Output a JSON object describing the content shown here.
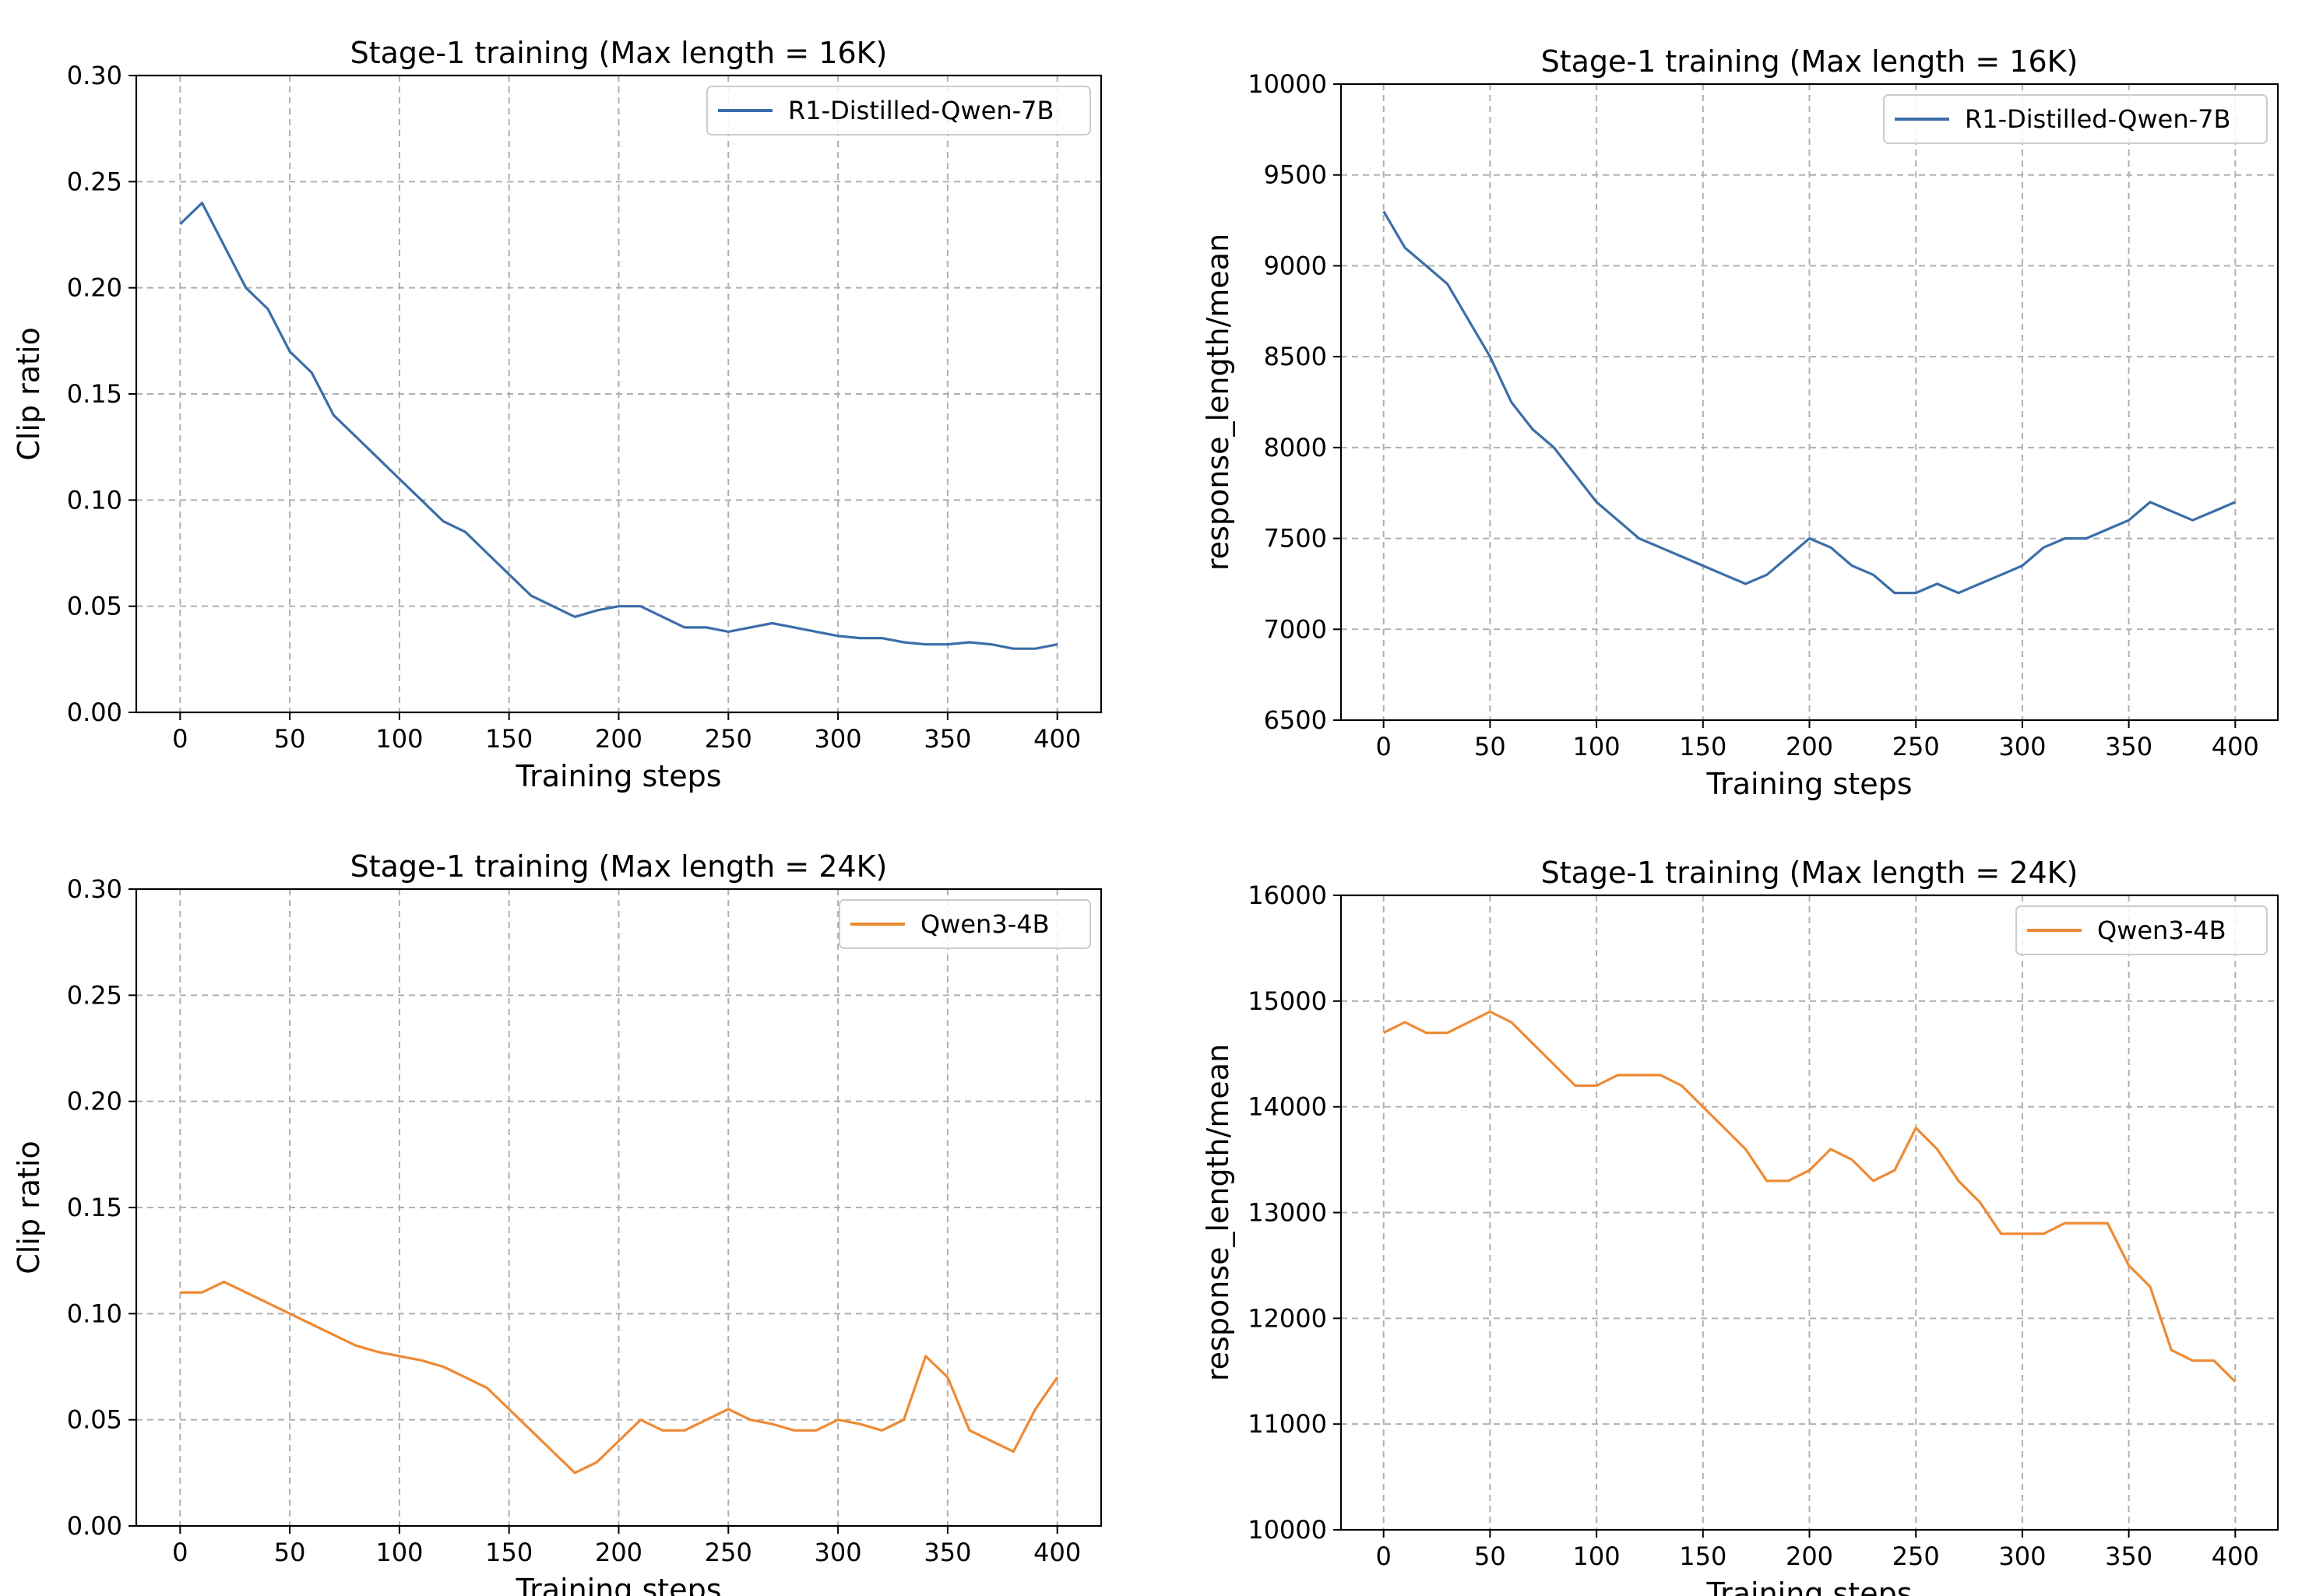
{
  "colors": {
    "blue": "#3b6ea8",
    "orange": "#ee8a33",
    "grid": "#b0b0b0"
  },
  "chart_data": [
    {
      "type": "line",
      "title": "Stage-1 training (Max length = 16K)",
      "xlabel": "Training steps",
      "ylabel": "Clip ratio",
      "xlim": [
        -20,
        420
      ],
      "ylim": [
        0,
        0.3
      ],
      "xticks": [
        0,
        50,
        100,
        150,
        200,
        250,
        300,
        350,
        400
      ],
      "yticks": [
        0.0,
        0.05,
        0.1,
        0.15,
        0.2,
        0.25,
        0.3
      ],
      "ytick_labels": [
        "0.00",
        "0.05",
        "0.10",
        "0.15",
        "0.20",
        "0.25",
        "0.30"
      ],
      "grid": true,
      "legend": "top-right",
      "series": [
        {
          "name": "R1-Distilled-Qwen-7B",
          "color": "#3b6ea8",
          "x": [
            0,
            10,
            20,
            30,
            40,
            50,
            60,
            70,
            80,
            90,
            100,
            110,
            120,
            130,
            140,
            150,
            160,
            170,
            180,
            190,
            200,
            210,
            220,
            230,
            240,
            250,
            260,
            270,
            280,
            290,
            300,
            310,
            320,
            330,
            340,
            350,
            360,
            370,
            380,
            390,
            400
          ],
          "y": [
            0.23,
            0.24,
            0.22,
            0.2,
            0.19,
            0.17,
            0.16,
            0.14,
            0.13,
            0.12,
            0.11,
            0.1,
            0.09,
            0.085,
            0.075,
            0.065,
            0.055,
            0.05,
            0.045,
            0.048,
            0.05,
            0.05,
            0.045,
            0.04,
            0.04,
            0.038,
            0.04,
            0.042,
            0.04,
            0.038,
            0.036,
            0.035,
            0.035,
            0.033,
            0.032,
            0.032,
            0.033,
            0.032,
            0.03,
            0.03,
            0.032
          ]
        }
      ]
    },
    {
      "type": "line",
      "title": "Stage-1 training (Max length = 16K)",
      "xlabel": "Training steps",
      "ylabel": "response_length/mean",
      "xlim": [
        -20,
        420
      ],
      "ylim": [
        6500,
        10000
      ],
      "xticks": [
        0,
        50,
        100,
        150,
        200,
        250,
        300,
        350,
        400
      ],
      "yticks": [
        6500,
        7000,
        7500,
        8000,
        8500,
        9000,
        9500,
        10000
      ],
      "ytick_labels": [
        "6500",
        "7000",
        "7500",
        "8000",
        "8500",
        "9000",
        "9500",
        "10000"
      ],
      "grid": true,
      "legend": "top-right",
      "series": [
        {
          "name": "R1-Distilled-Qwen-7B",
          "color": "#3b6ea8",
          "x": [
            0,
            10,
            20,
            30,
            40,
            50,
            60,
            70,
            80,
            90,
            100,
            110,
            120,
            130,
            140,
            150,
            160,
            170,
            180,
            190,
            200,
            210,
            220,
            230,
            240,
            250,
            260,
            270,
            280,
            290,
            300,
            310,
            320,
            330,
            340,
            350,
            360,
            370,
            380,
            390,
            400
          ],
          "y": [
            9300,
            9100,
            9000,
            8900,
            8700,
            8500,
            8250,
            8100,
            8000,
            7850,
            7700,
            7600,
            7500,
            7450,
            7400,
            7350,
            7300,
            7250,
            7300,
            7400,
            7500,
            7450,
            7350,
            7300,
            7200,
            7200,
            7250,
            7200,
            7250,
            7300,
            7350,
            7450,
            7500,
            7500,
            7550,
            7600,
            7700,
            7650,
            7600,
            7650,
            7700
          ]
        }
      ]
    },
    {
      "type": "line",
      "title": "Stage-1 training (Max length = 24K)",
      "xlabel": "Training steps",
      "ylabel": "Clip ratio",
      "xlim": [
        -20,
        420
      ],
      "ylim": [
        0,
        0.3
      ],
      "xticks": [
        0,
        50,
        100,
        150,
        200,
        250,
        300,
        350,
        400
      ],
      "yticks": [
        0.0,
        0.05,
        0.1,
        0.15,
        0.2,
        0.25,
        0.3
      ],
      "ytick_labels": [
        "0.00",
        "0.05",
        "0.10",
        "0.15",
        "0.20",
        "0.25",
        "0.30"
      ],
      "grid": true,
      "legend": "top-right",
      "series": [
        {
          "name": "Qwen3-4B",
          "color": "#ee8a33",
          "x": [
            0,
            10,
            20,
            30,
            40,
            50,
            60,
            70,
            80,
            90,
            100,
            110,
            120,
            130,
            140,
            150,
            160,
            170,
            180,
            190,
            200,
            210,
            220,
            230,
            240,
            250,
            260,
            270,
            280,
            290,
            300,
            310,
            320,
            330,
            340,
            350,
            360,
            370,
            380,
            390,
            400
          ],
          "y": [
            0.11,
            0.11,
            0.115,
            0.11,
            0.105,
            0.1,
            0.095,
            0.09,
            0.085,
            0.082,
            0.08,
            0.078,
            0.075,
            0.07,
            0.065,
            0.055,
            0.045,
            0.035,
            0.025,
            0.03,
            0.04,
            0.05,
            0.045,
            0.045,
            0.05,
            0.055,
            0.05,
            0.048,
            0.045,
            0.045,
            0.05,
            0.048,
            0.045,
            0.05,
            0.08,
            0.07,
            0.045,
            0.04,
            0.035,
            0.055,
            0.07
          ]
        }
      ]
    },
    {
      "type": "line",
      "title": "Stage-1 training (Max length = 24K)",
      "xlabel": "Training steps",
      "ylabel": "response_length/mean",
      "xlim": [
        -20,
        420
      ],
      "ylim": [
        10000,
        16000
      ],
      "xticks": [
        0,
        50,
        100,
        150,
        200,
        250,
        300,
        350,
        400
      ],
      "yticks": [
        10000,
        11000,
        12000,
        13000,
        14000,
        15000,
        16000
      ],
      "ytick_labels": [
        "10000",
        "11000",
        "12000",
        "13000",
        "14000",
        "15000",
        "16000"
      ],
      "grid": true,
      "legend": "top-right",
      "series": [
        {
          "name": "Qwen3-4B",
          "color": "#ee8a33",
          "x": [
            0,
            10,
            20,
            30,
            40,
            50,
            60,
            70,
            80,
            90,
            100,
            110,
            120,
            130,
            140,
            150,
            160,
            170,
            180,
            190,
            200,
            210,
            220,
            230,
            240,
            250,
            260,
            270,
            280,
            290,
            300,
            310,
            320,
            330,
            340,
            350,
            360,
            370,
            380,
            390,
            400
          ],
          "y": [
            14700,
            14800,
            14700,
            14700,
            14800,
            14900,
            14800,
            14600,
            14400,
            14200,
            14200,
            14300,
            14300,
            14300,
            14200,
            14000,
            13800,
            13600,
            13300,
            13300,
            13400,
            13600,
            13500,
            13300,
            13400,
            13800,
            13600,
            13300,
            13100,
            12800,
            12800,
            12800,
            12900,
            12900,
            12900,
            12500,
            12300,
            11700,
            11600,
            11600,
            11400
          ]
        }
      ]
    }
  ]
}
